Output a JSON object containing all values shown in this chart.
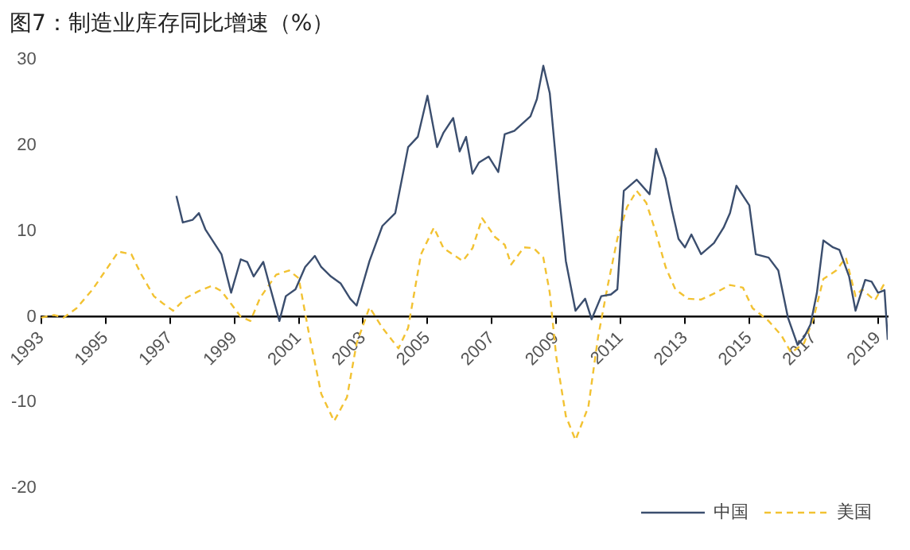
{
  "chart_data": {
    "type": "line",
    "title": "图7：制造业库存同比增速（%）",
    "xlim": [
      1993,
      2019.3
    ],
    "xticks": [
      1993,
      1995,
      1997,
      1999,
      2001,
      2003,
      2005,
      2007,
      2009,
      2011,
      2013,
      2015,
      2017,
      2019
    ],
    "ylim": [
      -20,
      30
    ],
    "yticks": [
      -20,
      -10,
      0,
      10,
      20,
      30
    ],
    "grid": false,
    "legend": "bottom right",
    "marker": "none",
    "series": [
      {
        "name": "中国",
        "color": "#3b4e6e",
        "line_style": "solid",
        "x": [
          1997.2,
          1997.4,
          1997.7,
          1997.9,
          1998.1,
          1998.6,
          1998.9,
          1999.2,
          1999.4,
          1999.6,
          1999.9,
          2000.1,
          2000.4,
          2000.6,
          2000.9,
          2001.2,
          2001.5,
          2001.7,
          2002.0,
          2002.3,
          2002.6,
          2002.8,
          2003.2,
          2003.6,
          2004.0,
          2004.4,
          2004.7,
          2005.0,
          2005.3,
          2005.5,
          2005.8,
          2006.0,
          2006.2,
          2006.4,
          2006.6,
          2006.9,
          2007.2,
          2007.4,
          2007.7,
          2008.2,
          2008.4,
          2008.6,
          2008.8,
          2009.1,
          2009.3,
          2009.6,
          2009.9,
          2010.1,
          2010.4,
          2010.7,
          2010.9,
          2011.1,
          2011.5,
          2011.9,
          2012.1,
          2012.4,
          2012.6,
          2012.8,
          2013.0,
          2013.2,
          2013.5,
          2013.9,
          2014.2,
          2014.4,
          2014.6,
          2015.0,
          2015.2,
          2015.6,
          2015.9,
          2016.2,
          2016.5,
          2016.7,
          2016.9,
          2017.1,
          2017.3,
          2017.6,
          2017.8,
          2018.1,
          2018.3,
          2018.6,
          2018.8,
          2019.0,
          2019.2,
          2019.3
        ],
        "values": [
          14.1,
          11.0,
          11.3,
          12.1,
          10.2,
          7.3,
          2.8,
          6.7,
          6.4,
          4.7,
          6.4,
          3.6,
          -0.5,
          2.4,
          3.2,
          5.8,
          7.1,
          5.8,
          4.7,
          3.9,
          2.1,
          1.3,
          6.5,
          10.6,
          12.1,
          19.8,
          21.0,
          25.8,
          19.8,
          21.5,
          23.2,
          19.3,
          21.0,
          16.7,
          18.0,
          18.7,
          16.9,
          21.3,
          21.7,
          23.4,
          25.4,
          29.3,
          26.1,
          13.9,
          6.5,
          0.7,
          2.1,
          -0.3,
          2.4,
          2.6,
          3.2,
          14.7,
          16.0,
          14.3,
          19.6,
          16.1,
          12.4,
          9.1,
          8.1,
          9.6,
          7.3,
          8.6,
          10.4,
          12.1,
          15.3,
          13.0,
          7.3,
          6.9,
          5.4,
          -0.1,
          -3.3,
          -2.4,
          -0.9,
          2.8,
          8.9,
          8.1,
          7.8,
          4.7,
          0.7,
          4.3,
          4.1,
          2.8,
          3.1,
          -2.7
        ]
      },
      {
        "name": "美国",
        "color": "#f2c232",
        "line_style": "dashed",
        "x": [
          1993.0,
          1993.4,
          1993.7,
          1994.1,
          1994.6,
          1995.0,
          1995.4,
          1995.8,
          1996.1,
          1996.5,
          1996.8,
          1997.1,
          1997.5,
          1997.9,
          1998.3,
          1998.6,
          1998.9,
          1999.2,
          1999.5,
          1999.8,
          2000.3,
          2000.7,
          2001.0,
          2001.3,
          2001.7,
          2002.1,
          2002.5,
          2002.8,
          2003.2,
          2003.6,
          2004.1,
          2004.4,
          2004.8,
          2005.2,
          2005.5,
          2006.1,
          2006.4,
          2006.7,
          2007.1,
          2007.4,
          2007.6,
          2008.0,
          2008.3,
          2008.6,
          2008.8,
          2009.0,
          2009.3,
          2009.6,
          2010.0,
          2010.3,
          2010.6,
          2010.9,
          2011.2,
          2011.5,
          2011.8,
          2012.1,
          2012.4,
          2012.7,
          2013.1,
          2013.5,
          2013.9,
          2014.4,
          2014.8,
          2015.1,
          2015.6,
          2016.0,
          2016.3,
          2016.7,
          2017.0,
          2017.3,
          2017.7,
          2018.0,
          2018.3,
          2018.5,
          2018.9,
          2019.2
        ],
        "values": [
          -0.1,
          0.2,
          -0.1,
          1.0,
          3.2,
          5.4,
          7.6,
          7.3,
          5.0,
          2.4,
          1.5,
          0.7,
          2.2,
          3.0,
          3.6,
          3.0,
          1.5,
          0.0,
          -0.5,
          2.2,
          4.9,
          5.4,
          4.5,
          -1.6,
          -9.0,
          -12.2,
          -9.4,
          -3.1,
          1.1,
          -1.3,
          -3.7,
          -1.3,
          7.3,
          10.4,
          8.0,
          6.5,
          8.0,
          11.5,
          9.3,
          8.4,
          6.1,
          8.1,
          8.0,
          6.9,
          2.8,
          -4.6,
          -11.6,
          -14.4,
          -10.5,
          -2.4,
          3.6,
          9.1,
          12.8,
          14.7,
          13.3,
          9.8,
          5.8,
          3.2,
          2.1,
          2.0,
          2.7,
          3.7,
          3.4,
          1.0,
          -0.5,
          -2.2,
          -4.2,
          -3.1,
          -0.1,
          4.4,
          5.4,
          6.9,
          2.4,
          3.2,
          1.9,
          3.9
        ]
      }
    ]
  }
}
